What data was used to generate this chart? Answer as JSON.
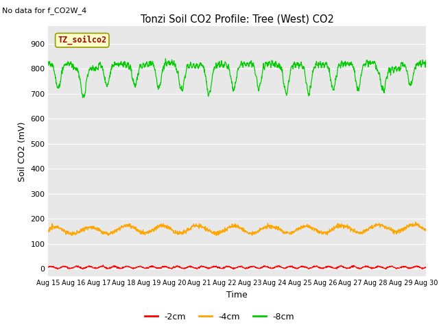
{
  "title": "Tonzi Soil CO2 Profile: Tree (West) CO2",
  "no_data_text": "No data for f_CO2W_4",
  "xlabel": "Time",
  "ylabel": "Soil CO2 (mV)",
  "ylim": [
    -30,
    970
  ],
  "xlim": [
    0,
    15
  ],
  "yticks": [
    0,
    100,
    200,
    300,
    400,
    500,
    600,
    700,
    800,
    900
  ],
  "xtick_labels": [
    "Aug 15",
    "Aug 16",
    "Aug 17",
    "Aug 18",
    "Aug 19",
    "Aug 20",
    "Aug 21",
    "Aug 22",
    "Aug 23",
    "Aug 24",
    "Aug 25",
    "Aug 26",
    "Aug 27",
    "Aug 28",
    "Aug 29",
    "Aug 30"
  ],
  "fig_bg_color": "#ffffff",
  "plot_bg_color": "#e8e8e8",
  "line_colors": {
    "2cm": "#ff0000",
    "4cm": "#ffa500",
    "8cm": "#00cc00"
  },
  "legend_label": "TZ_soilco2",
  "legend_box_facecolor": "#ffffcc",
  "legend_text_color": "#aa0000",
  "legend_box_edgecolor": "#999900"
}
